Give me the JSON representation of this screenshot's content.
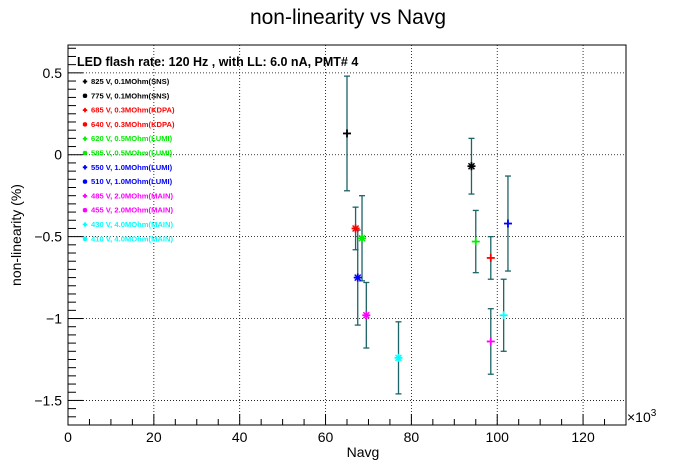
{
  "chart_data": {
    "type": "scatter",
    "title": "non-linearity vs Navg",
    "xlabel": "Navg",
    "ylabel": "non-linearity (%)",
    "x_multiplier_label": "×10",
    "x_multiplier_exp": "3",
    "xlim": [
      0,
      130
    ],
    "ylim": [
      -1.65,
      0.67
    ],
    "x_ticks": [
      0,
      20,
      40,
      60,
      80,
      100,
      120
    ],
    "x_tick_labels": [
      "0",
      "20",
      "40",
      "60",
      "80",
      "100",
      "120"
    ],
    "y_ticks": [
      -1.5,
      -1,
      -0.5,
      0,
      0.5
    ],
    "y_tick_labels": [
      "−1.5",
      "−1",
      "−0.5",
      "0",
      "0.5"
    ],
    "grid": true,
    "legend_header": "LED flash rate: 120 Hz , with LL: 6.0 nA, PMT# 4",
    "legend_placement": "top-left",
    "series": [
      {
        "name": "825 V, 0.1MOhm(SNS)",
        "color": "#000000",
        "marker": "+",
        "x": [
          65.0
        ],
        "y": [
          0.13
        ],
        "err": [
          0.35
        ]
      },
      {
        "name": "775 V, 0.1MOhm(SNS)",
        "color": "#000000",
        "marker": "*",
        "x": [
          94.0
        ],
        "y": [
          -0.07
        ],
        "err": [
          0.17
        ]
      },
      {
        "name": "685 V, 0.3MOhm(KDPA)",
        "color": "#ff0000",
        "marker": "+",
        "x": [
          98.5
        ],
        "y": [
          -0.63
        ],
        "err": [
          0.13
        ]
      },
      {
        "name": "640 V, 0.3MOhm(KDPA)",
        "color": "#ff0000",
        "marker": "*",
        "x": [
          67.0
        ],
        "y": [
          -0.45
        ],
        "err": [
          0.13
        ]
      },
      {
        "name": "620 V, 0.5MOhm(LUMI)",
        "color": "#00ee00",
        "marker": "+",
        "x": [
          95.0
        ],
        "y": [
          -0.53
        ],
        "err": [
          0.19
        ]
      },
      {
        "name": "585 V, 0.5MOhm(LUMI)",
        "color": "#00ee00",
        "marker": "*",
        "x": [
          68.5
        ],
        "y": [
          -0.51
        ],
        "err": [
          0.26
        ]
      },
      {
        "name": "550 V, 1.0MOhm(LUMI)",
        "color": "#0000ff",
        "marker": "+",
        "x": [
          102.5
        ],
        "y": [
          -0.42
        ],
        "err": [
          0.29
        ]
      },
      {
        "name": "510 V, 1.0MOhm(LUMI)",
        "color": "#0000ff",
        "marker": "*",
        "x": [
          67.5
        ],
        "y": [
          -0.75
        ],
        "err": [
          0.29
        ]
      },
      {
        "name": "485 V, 2.0MOhm(MAIN)",
        "color": "#ff00ff",
        "marker": "+",
        "x": [
          98.5
        ],
        "y": [
          -1.14
        ],
        "err": [
          0.2
        ]
      },
      {
        "name": "455 V, 2.0MOhm(MAIN)",
        "color": "#ff00ff",
        "marker": "*",
        "x": [
          69.5
        ],
        "y": [
          -0.98
        ],
        "err": [
          0.2
        ]
      },
      {
        "name": "430 V, 4.0MOhm(MAIN)",
        "color": "#00ffff",
        "marker": "+",
        "x": [
          101.5
        ],
        "y": [
          -0.98
        ],
        "err": [
          0.22
        ]
      },
      {
        "name": "410 V, 4.0MOhm(MAIN)",
        "color": "#00ffff",
        "marker": "*",
        "x": [
          77.0
        ],
        "y": [
          -1.24
        ],
        "err": [
          0.22
        ]
      }
    ]
  }
}
